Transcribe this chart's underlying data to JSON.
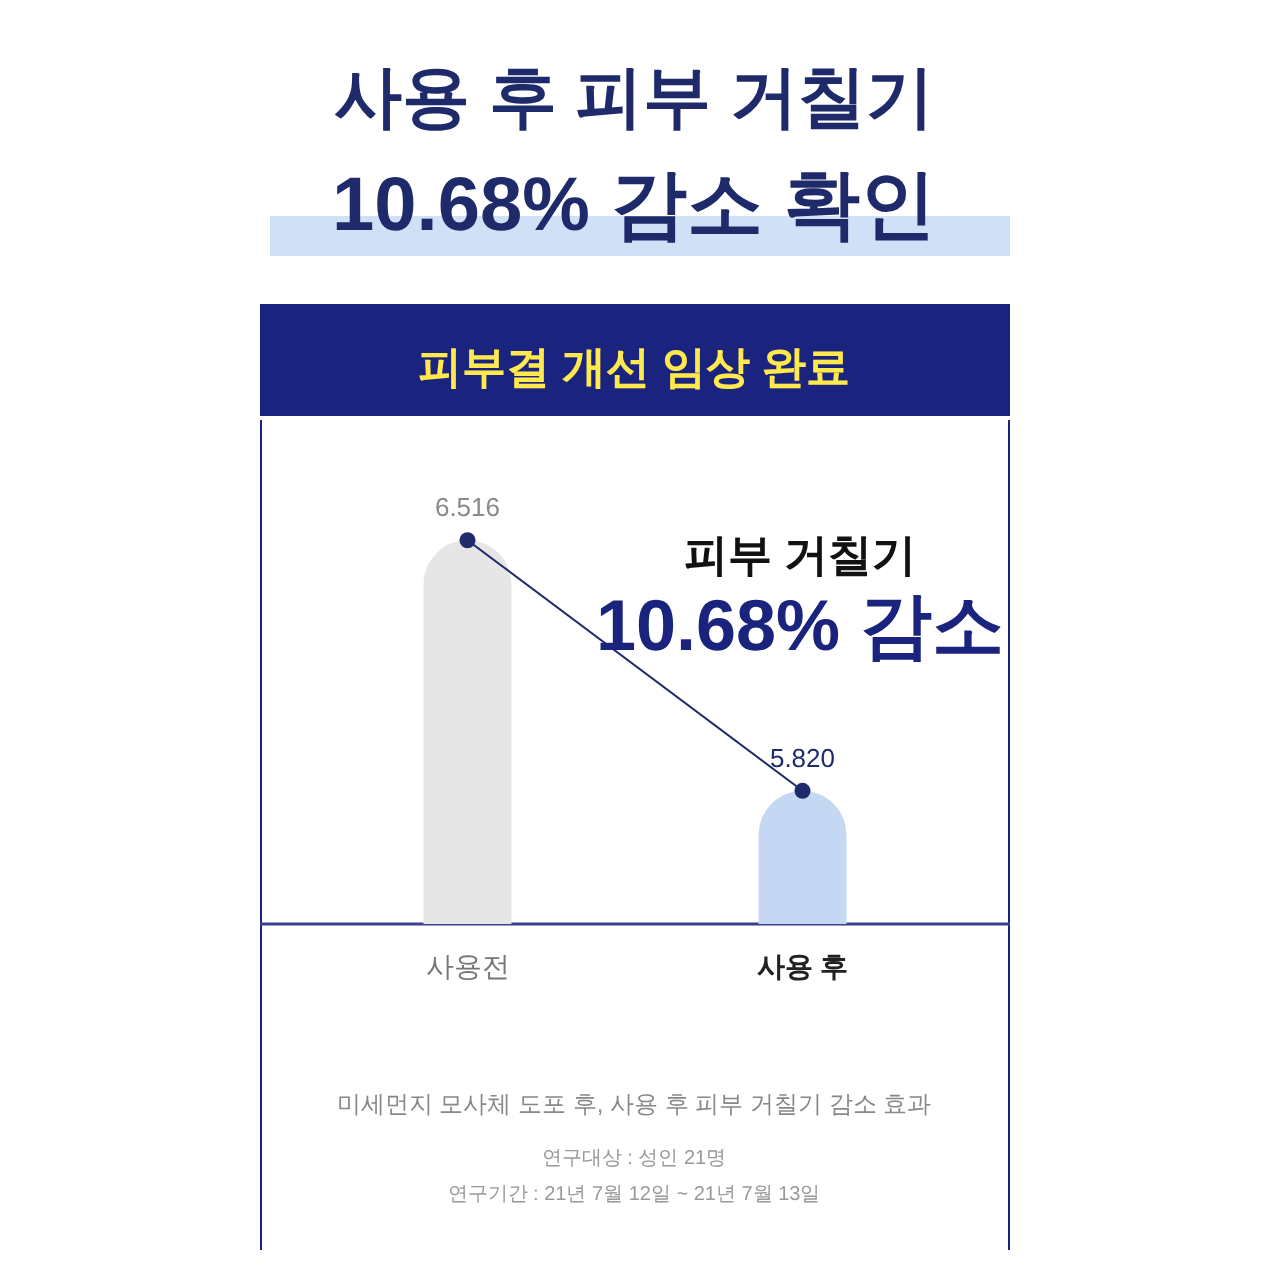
{
  "chart_data": {
    "type": "bar",
    "title": "사용 후 피부 거칠기",
    "subtitle": "10.68% 감소 확인",
    "categories": [
      "사용전",
      "사용 후"
    ],
    "series": [
      {
        "type": "bar",
        "colors": [
          "#e6e6e6",
          "#c5d8f3"
        ],
        "values": [
          6.516,
          5.82
        ],
        "value_labels": [
          "6.516",
          "5.820"
        ]
      },
      {
        "type": "line",
        "color": "#1f2a6b",
        "values": [
          6.516,
          5.82
        ]
      }
    ],
    "ylim": [
      5.45,
      6.85
    ],
    "tick_labels": "x",
    "marker": "circle",
    "annotations": [
      "피부결 개선 임상 완료",
      "피부 거칠기",
      "10.68% 감소",
      "미세먼지 모사체 도포 후, 사용 후 피부 거칠기 감소 효과",
      "연구대상 : 성인 21명",
      "연구기간 : 21년 7월 12일 ~ 21년 7월 13일"
    ]
  }
}
